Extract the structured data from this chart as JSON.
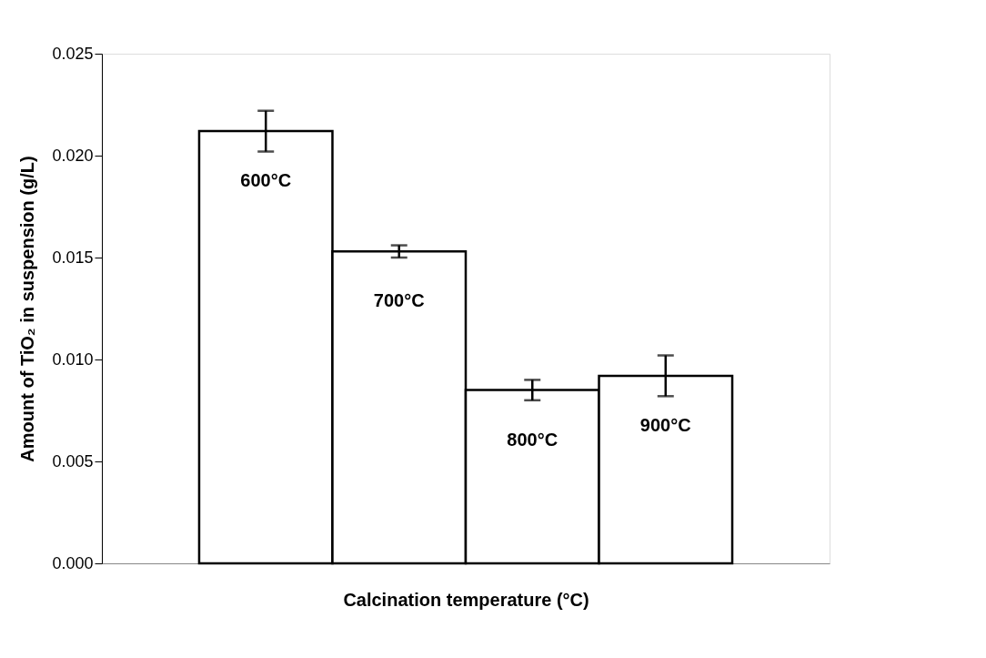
{
  "chart_data": {
    "type": "bar",
    "xlabel": "Calcination temperature (°C)",
    "ylabel": "Amount of TiO₂ in suspension (g/L)",
    "categories": [
      "600°C",
      "700°C",
      "800°C",
      "900°C"
    ],
    "values": [
      0.0212,
      0.0153,
      0.0085,
      0.0092
    ],
    "errors": [
      0.001,
      0.0003,
      0.0005,
      0.001
    ],
    "color": "#ffffff",
    "ylim": [
      0,
      0.025
    ],
    "yticks": [
      {
        "value": 0,
        "label": "0.000"
      },
      {
        "value": 0.005,
        "label": "0.005"
      },
      {
        "value": 0.01,
        "label": "0.010"
      },
      {
        "value": 0.015,
        "label": "0.015"
      },
      {
        "value": 0.02,
        "label": "0.020"
      },
      {
        "value": 0.025,
        "label": "0.025"
      }
    ],
    "tick_labels": "y",
    "grid": false
  }
}
